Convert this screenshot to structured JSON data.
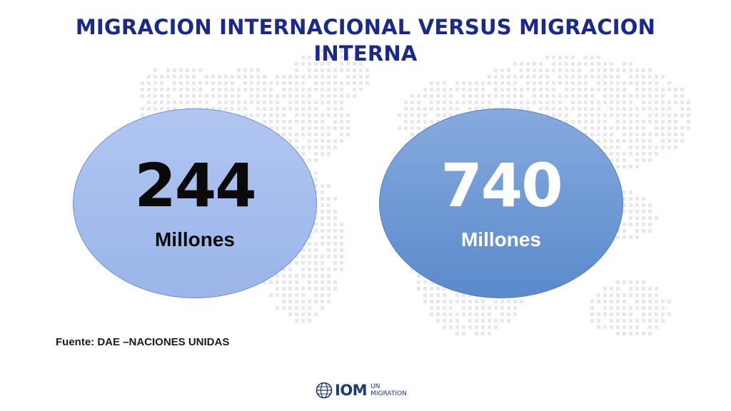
{
  "title": "MIGRACION INTERNACIONAL VERSUS MIGRACION INTERNA",
  "stats": [
    {
      "value": "244",
      "unit": "Millones"
    },
    {
      "value": "740",
      "unit": "Millones"
    }
  ],
  "source": "Fuente: DAE –NACIONES UNIDAS",
  "logo": {
    "main": "IOM",
    "line1": "UN",
    "line2": "MIGRATION"
  },
  "colors": {
    "title": "#1a2a8c",
    "left_circle": "#a7bdee",
    "right_circle": "#6f98d4",
    "map_dots": "#e6e8ee"
  },
  "icons": [
    "world-map-dots-background",
    "iom-globe-logo-icon"
  ]
}
